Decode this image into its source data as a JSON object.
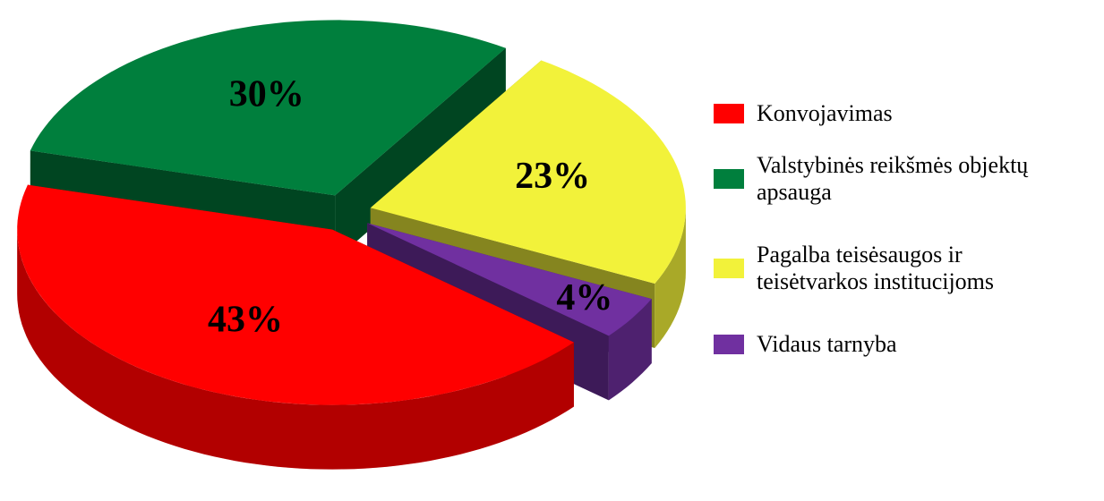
{
  "chart_data": {
    "type": "pie",
    "categories": [
      "Konvojavimas",
      "Valstybinės reikšmės objektų apsauga",
      "Pagalba teisėsaugos ir teisėtvarkos institucijoms",
      "Vidaus tarnyba"
    ],
    "values": [
      43,
      30,
      23,
      4
    ],
    "value_labels": [
      "43%",
      "30%",
      "23%",
      "4%"
    ],
    "colors": [
      "#ff0000",
      "#007f3d",
      "#f2f23a",
      "#7030a0"
    ],
    "legend": "right"
  }
}
